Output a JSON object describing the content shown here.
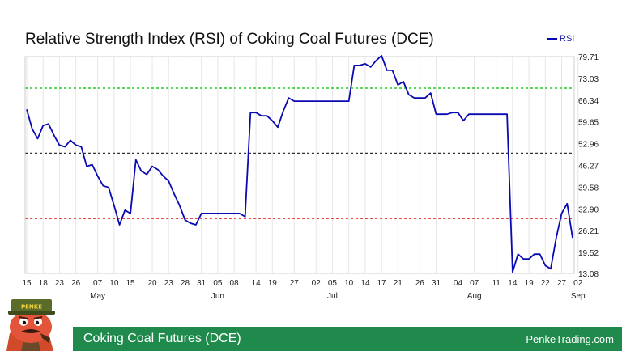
{
  "chart_data": {
    "type": "line",
    "title": "Relative Strength Index (RSI) of Coking Coal Futures (DCE)",
    "series": [
      {
        "name": "RSI",
        "color": "#0a0ab4",
        "values": [
          63.5,
          57.5,
          54.5,
          58.5,
          59,
          55.5,
          52.5,
          52,
          54,
          52.5,
          52,
          46,
          46.5,
          43,
          40,
          39.5,
          34,
          28,
          32.5,
          31.5,
          48,
          44.5,
          43.5,
          46,
          45,
          43,
          41.5,
          37.5,
          34,
          29.5,
          28.5,
          28,
          31.5,
          31.5,
          31.5,
          31.5,
          31.5,
          31.5,
          31.5,
          31.5,
          30.5,
          62.5,
          62.5,
          61.5,
          61.5,
          60,
          58,
          63,
          67,
          66,
          66,
          66,
          66,
          66,
          66,
          66,
          66,
          66,
          66,
          66,
          77,
          77,
          77.5,
          76.5,
          78.5,
          80,
          75.5,
          75.5,
          71,
          72,
          68,
          67,
          67,
          67,
          68.5,
          62,
          62,
          62,
          62.5,
          62.5,
          60,
          62,
          62,
          62,
          62,
          62,
          62,
          62,
          62,
          13.5,
          19,
          17.5,
          17.5,
          19,
          19,
          15.5,
          14.5,
          24,
          31.5,
          34.5,
          24
        ]
      }
    ],
    "x_labels": [
      "15",
      "18",
      "23",
      "26",
      "07",
      "10",
      "15",
      "20",
      "23",
      "28",
      "31",
      "05",
      "08",
      "14",
      "19",
      "27",
      "02",
      "05",
      "10",
      "14",
      "17",
      "21",
      "26",
      "31",
      "04",
      "07",
      "11",
      "14",
      "19",
      "22",
      "27",
      "02"
    ],
    "x_label_index": [
      0,
      3,
      6,
      9,
      13,
      16,
      19,
      23,
      26,
      29,
      32,
      35,
      38,
      42,
      45,
      49,
      53,
      56,
      59,
      62,
      65,
      68,
      72,
      75,
      79,
      82,
      86,
      89,
      92,
      95,
      98,
      101
    ],
    "months": [
      {
        "label": "May",
        "index": 13
      },
      {
        "label": "Jun",
        "index": 35
      },
      {
        "label": "Jul",
        "index": 56
      },
      {
        "label": "Aug",
        "index": 82
      },
      {
        "label": "Sep",
        "index": 101
      }
    ],
    "yticks": [
      "79.71",
      "73.03",
      "66.34",
      "59.65",
      "52.96",
      "46.27",
      "39.58",
      "32.90",
      "26.21",
      "19.52",
      "13.08"
    ],
    "ylim": [
      13.08,
      79.71
    ],
    "reference_lines": [
      {
        "value": 70,
        "color": "#22cc22"
      },
      {
        "value": 50,
        "color": "#333333"
      },
      {
        "value": 30,
        "color": "#dd1111"
      }
    ],
    "legend": "top-right",
    "grid": "vertical"
  },
  "footer": {
    "left": "Coking Coal Futures (DCE)",
    "right": "PenkeTrading.com"
  },
  "mascot": {
    "hat_text": "PENKE"
  }
}
